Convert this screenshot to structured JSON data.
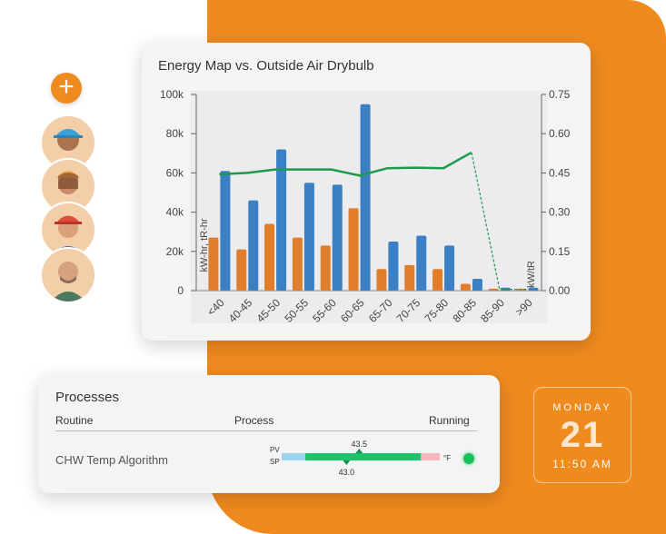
{
  "left_rail": {
    "add_button": "+",
    "avatars": [
      "worker-1",
      "worker-2",
      "worker-3",
      "worker-4"
    ]
  },
  "chart_card": {
    "title": "Energy Map vs. Outside Air Drybulb"
  },
  "chart_data": {
    "type": "bar",
    "title": "Energy Map vs. Outside Air Drybulb",
    "categories": [
      "<40",
      "40-45",
      "45-50",
      "50-55",
      "55-60",
      "60-65",
      "65-70",
      "70-75",
      "75-80",
      "80-85",
      "85-90",
      ">90"
    ],
    "series": [
      {
        "name": "kW-hr",
        "color": "#3b7fc4",
        "values": [
          61000,
          46000,
          72000,
          55000,
          54000,
          95000,
          25000,
          28000,
          23000,
          6000,
          1500,
          1500
        ]
      },
      {
        "name": "tR-hr",
        "color": "#e07e2c",
        "values": [
          27000,
          21000,
          34000,
          27000,
          23000,
          42000,
          11000,
          13000,
          11000,
          3500,
          1000,
          1000
        ]
      },
      {
        "name": "kW/tR",
        "color": "#1e9a4b",
        "type": "line",
        "values": [
          0.445,
          0.45,
          0.463,
          0.463,
          0.463,
          0.44,
          0.468,
          0.47,
          0.468,
          0.528,
          0.005,
          0.005
        ]
      }
    ],
    "ylabel": "kW-hr, tR-hr",
    "y2label": "kW/tR",
    "ylim": [
      0,
      100000
    ],
    "y2lim": [
      0,
      0.75
    ],
    "yticks": [
      "0",
      "20k",
      "40k",
      "60k",
      "80k",
      "100k"
    ],
    "y2ticks": [
      "0.00",
      "0.15",
      "0.30",
      "0.45",
      "0.60",
      "0.75"
    ],
    "grid": false,
    "legend": "none"
  },
  "processes": {
    "title": "Processes",
    "col_routine": "Routine",
    "col_process": "Process",
    "col_running": "Running",
    "row": {
      "routine": "CHW Temp Algorithm",
      "pv_label": "PV",
      "sp_label": "SP",
      "pv_value": "43.5",
      "sp_value": "43.0",
      "pv_fraction": 0.49,
      "sp_fraction": 0.41,
      "unit": "°F",
      "running": true
    }
  },
  "date_widget": {
    "weekday": "MONDAY",
    "day": "21",
    "time": "11:50 AM"
  }
}
